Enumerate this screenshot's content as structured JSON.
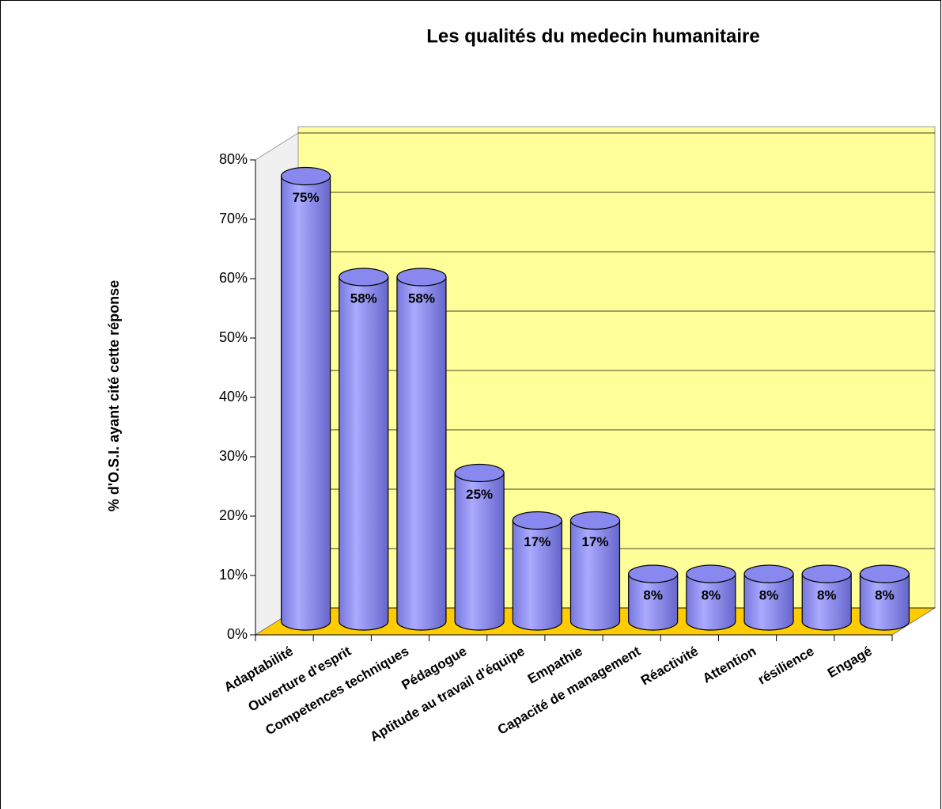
{
  "chart_data": {
    "type": "bar",
    "title": "Les qualités du medecin humanitaire",
    "y_label": "% d'O.S.I. ayant cité cette réponse",
    "categories": [
      "Adaptabilité",
      "Ouverture d'esprit",
      "Competences techniques",
      "Pédagogue",
      "Aptitude au travail d'équipe",
      "Empathie",
      "Capacité de management",
      "Réactivité",
      "Attention",
      "résilience",
      "Engagé"
    ],
    "values": [
      75,
      58,
      58,
      25,
      17,
      17,
      8,
      8,
      8,
      8,
      8
    ],
    "value_labels": [
      "75%",
      "58%",
      "58%",
      "25%",
      "17%",
      "17%",
      "8%",
      "8%",
      "8%",
      "8%",
      "8%"
    ],
    "color": "#9999ff",
    "ylim": [
      0,
      80
    ],
    "yticks": [
      {
        "value": 0,
        "label": "0%"
      },
      {
        "value": 10,
        "label": "10%"
      },
      {
        "value": 20,
        "label": "20%"
      },
      {
        "value": 30,
        "label": "30%"
      },
      {
        "value": 40,
        "label": "40%"
      },
      {
        "value": 50,
        "label": "50%"
      },
      {
        "value": 60,
        "label": "60%"
      },
      {
        "value": 70,
        "label": "70%"
      },
      {
        "value": 80,
        "label": "80%"
      }
    ],
    "grid": true
  }
}
